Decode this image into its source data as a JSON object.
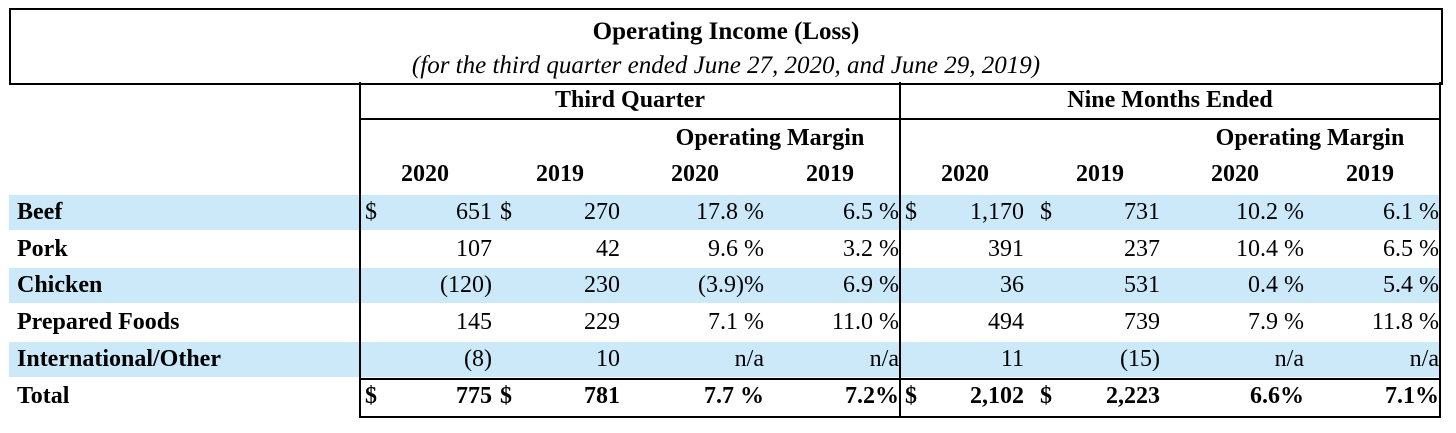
{
  "header": {
    "title": "Operating Income (Loss)",
    "subtitle": "(for the third quarter ended June 27, 2020, and June 29, 2019)"
  },
  "groups": {
    "third_quarter": "Third Quarter",
    "nine_months": "Nine Months Ended"
  },
  "subheaders": {
    "operating_margin": "Operating Margin"
  },
  "columns": {
    "tq_2020": "2020",
    "tq_2019": "2019",
    "tq_om_2020": "2020",
    "tq_om_2019": "2019",
    "nm_2020": "2020",
    "nm_2019": "2019",
    "nm_om_2020": "2020",
    "nm_om_2019": "2019"
  },
  "rows": [
    {
      "label": "Beef",
      "tq_cur": "$",
      "tq_2020": "651",
      "tq_cur2": "$",
      "tq_2019": "270",
      "tq_om_2020": "17.8 %",
      "tq_om_2019": "6.5 %",
      "nm_cur": "$",
      "nm_2020": "1,170",
      "nm_cur2": "$",
      "nm_2019": "731",
      "nm_om_2020": "10.2 %",
      "nm_om_2019": "6.1 %"
    },
    {
      "label": "Pork",
      "tq_cur": "",
      "tq_2020": "107",
      "tq_cur2": "",
      "tq_2019": "42",
      "tq_om_2020": "9.6 %",
      "tq_om_2019": "3.2 %",
      "nm_cur": "",
      "nm_2020": "391",
      "nm_cur2": "",
      "nm_2019": "237",
      "nm_om_2020": "10.4 %",
      "nm_om_2019": "6.5 %"
    },
    {
      "label": "Chicken",
      "tq_cur": "",
      "tq_2020": "(120)",
      "tq_cur2": "",
      "tq_2019": "230",
      "tq_om_2020": "(3.9)%",
      "tq_om_2019": "6.9 %",
      "nm_cur": "",
      "nm_2020": "36",
      "nm_cur2": "",
      "nm_2019": "531",
      "nm_om_2020": "0.4 %",
      "nm_om_2019": "5.4 %"
    },
    {
      "label": "Prepared Foods",
      "tq_cur": "",
      "tq_2020": "145",
      "tq_cur2": "",
      "tq_2019": "229",
      "tq_om_2020": "7.1 %",
      "tq_om_2019": "11.0 %",
      "nm_cur": "",
      "nm_2020": "494",
      "nm_cur2": "",
      "nm_2019": "739",
      "nm_om_2020": "7.9 %",
      "nm_om_2019": "11.8 %"
    },
    {
      "label": "International/Other",
      "tq_cur": "",
      "tq_2020": "(8)",
      "tq_cur2": "",
      "tq_2019": "10",
      "tq_om_2020": "n/a",
      "tq_om_2019": "n/a",
      "nm_cur": "",
      "nm_2020": "11",
      "nm_cur2": "",
      "nm_2019": "(15)",
      "nm_om_2020": "n/a",
      "nm_om_2019": "n/a"
    },
    {
      "label": "Total",
      "tq_cur": "$",
      "tq_2020": "775",
      "tq_cur2": "$",
      "tq_2019": "781",
      "tq_om_2020": "7.7 %",
      "tq_om_2019": "7.2%",
      "nm_cur": "$",
      "nm_2020": "2,102",
      "nm_cur2": "$",
      "nm_2019": "2,223",
      "nm_om_2020": "6.6%",
      "nm_om_2019": "7.1%"
    }
  ],
  "colors": {
    "row_shade": "#cce9fa",
    "border": "#000000"
  }
}
